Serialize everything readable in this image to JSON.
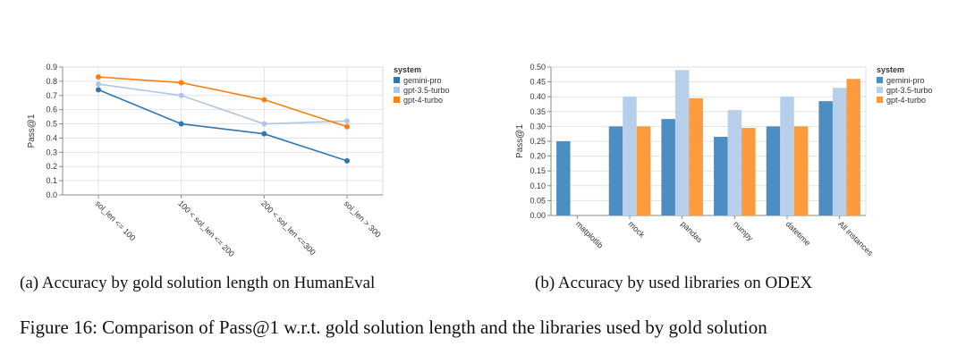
{
  "captions": {
    "a": "(a) Accuracy by gold solution length on HumanEval",
    "b": "(b) Accuracy by used libraries on ODEX",
    "figure": "Figure 16: Comparison of Pass@1 w.r.t. gold solution length and the libraries used by gold solution"
  },
  "chart_data": [
    {
      "type": "line",
      "title": "",
      "xlabel": "",
      "ylabel": "Pass@1",
      "categories": [
        "sol_len <= 100",
        "100 < sol_len <= 200",
        "200 < sol_len <=300",
        "sol_len > 300"
      ],
      "ylim": [
        0,
        0.9
      ],
      "yticks": [
        "0.0",
        "0.1",
        "0.2",
        "0.3",
        "0.4",
        "0.5",
        "0.6",
        "0.7",
        "0.8",
        "0.9"
      ],
      "grid": true,
      "legend": {
        "title": "system",
        "position": "right"
      },
      "series": [
        {
          "name": "gemini-pro",
          "color": "#2f77b4",
          "values": [
            0.74,
            0.5,
            0.43,
            0.24
          ]
        },
        {
          "name": "gpt-3.5-turbo",
          "color": "#aec7e8",
          "values": [
            0.78,
            0.7,
            0.5,
            0.52
          ]
        },
        {
          "name": "gpt-4-turbo",
          "color": "#ff7f0e",
          "values": [
            0.83,
            0.79,
            0.67,
            0.48
          ]
        }
      ]
    },
    {
      "type": "bar",
      "title": "",
      "xlabel": "",
      "ylabel": "Pass@1",
      "categories": [
        "matplotlib",
        "mock",
        "pandas",
        "numpy",
        "datetime",
        "All instances"
      ],
      "ylim": [
        0,
        0.5
      ],
      "yticks": [
        "0.00",
        "0.05",
        "0.10",
        "0.15",
        "0.20",
        "0.25",
        "0.30",
        "0.35",
        "0.40",
        "0.45",
        "0.50"
      ],
      "grid": true,
      "legend": {
        "title": "system",
        "position": "right"
      },
      "series": [
        {
          "name": "gemini-pro",
          "color": "#4c8ec2",
          "values": [
            0.25,
            0.3,
            0.325,
            0.265,
            0.3,
            0.385
          ]
        },
        {
          "name": "gpt-3.5-turbo",
          "color": "#b8cfec",
          "values": [
            0,
            0.4,
            0.49,
            0.355,
            0.4,
            0.43
          ]
        },
        {
          "name": "gpt-4-turbo",
          "color": "#ff993e",
          "values": [
            0,
            0.3,
            0.395,
            0.295,
            0.3,
            0.46
          ]
        }
      ]
    }
  ]
}
